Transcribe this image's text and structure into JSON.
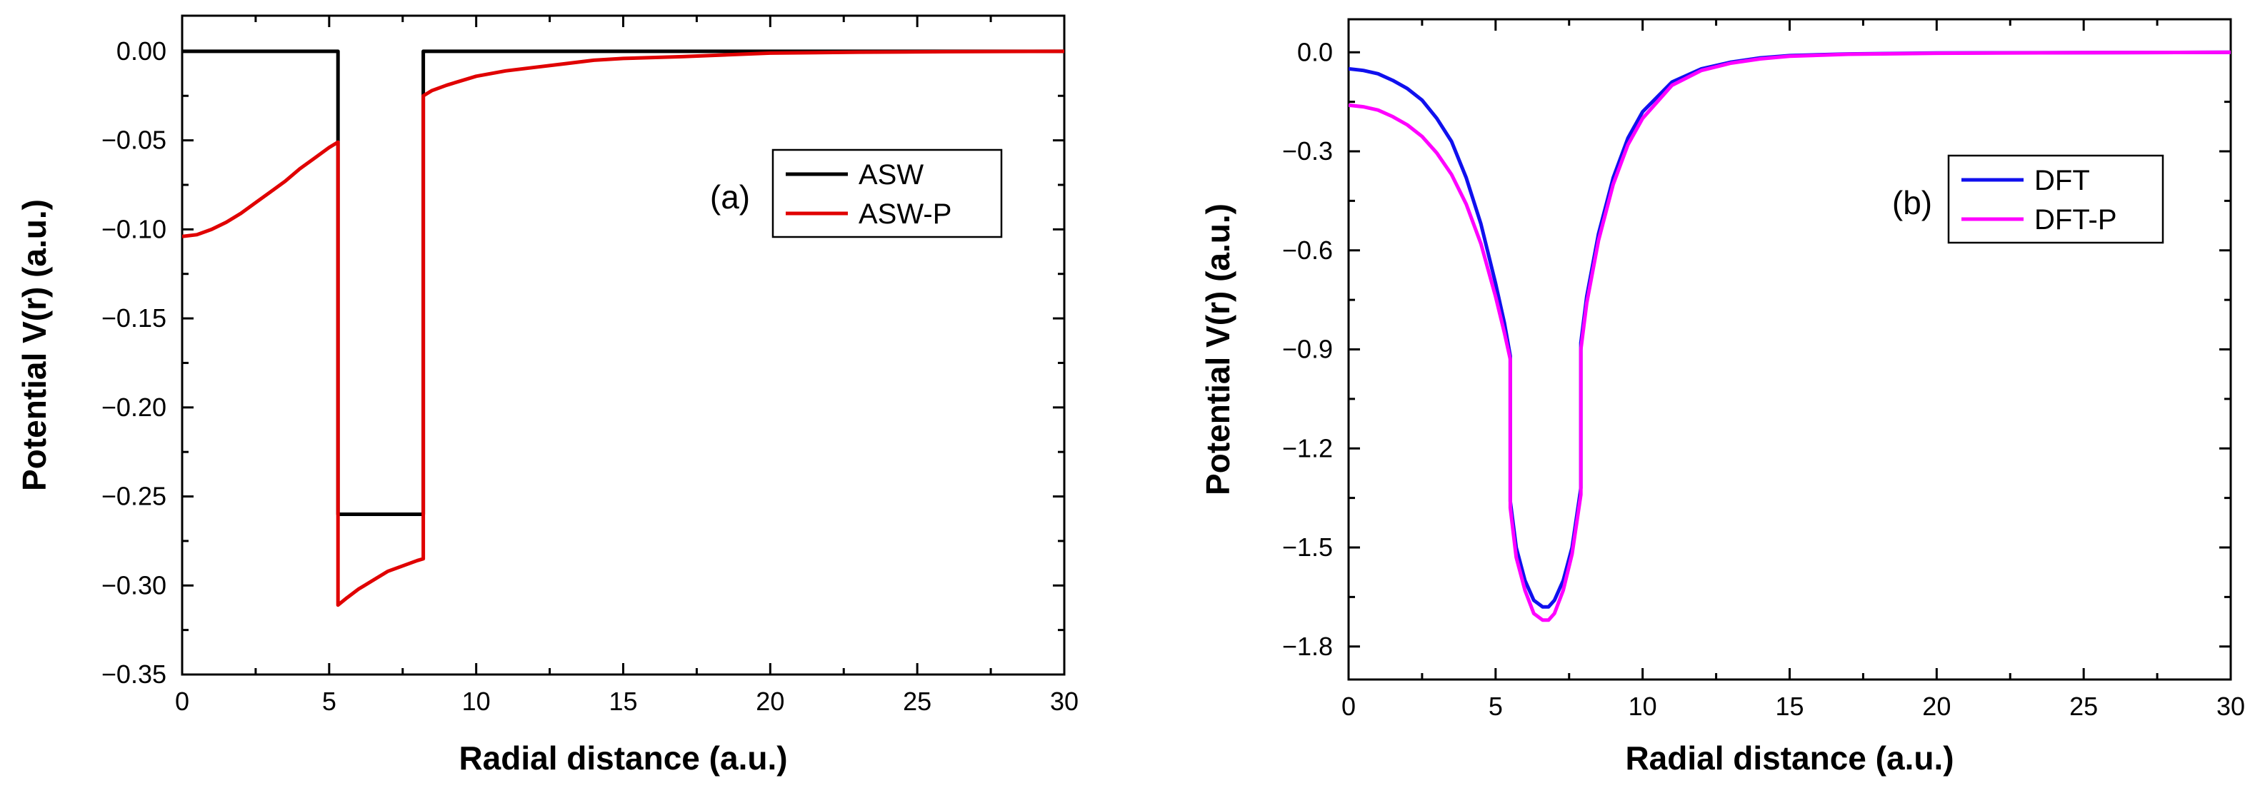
{
  "chart_data": [
    {
      "type": "line",
      "panel_label": "(a)",
      "xlabel": "Radial distance (a.u.)",
      "ylabel": "Potential V(r) (a.u.)",
      "xlim": [
        0,
        30
      ],
      "ylim": [
        -0.35,
        0.02
      ],
      "x_ticks": [
        0,
        5,
        10,
        15,
        20,
        25,
        30
      ],
      "y_ticks": [
        0.0,
        -0.05,
        -0.1,
        -0.15,
        -0.2,
        -0.25,
        -0.3,
        -0.35
      ],
      "x_tick_labels": [
        "0",
        "5",
        "10",
        "15",
        "20",
        "25",
        "30"
      ],
      "y_tick_labels": [
        "0.00",
        "−0.05",
        "−0.10",
        "−0.15",
        "−0.20",
        "−0.25",
        "−0.30",
        "−0.35"
      ],
      "grid": false,
      "legend_position": "top-right",
      "series": [
        {
          "name": "ASW",
          "color": "#000000",
          "x": [
            0,
            5.3,
            5.3,
            8.2,
            8.2,
            30
          ],
          "y": [
            0.0,
            0.0,
            -0.26,
            -0.26,
            0.0,
            0.0
          ]
        },
        {
          "name": "ASW-P",
          "color": "#e00000",
          "x": [
            0,
            0.5,
            1,
            1.5,
            2,
            2.5,
            3,
            3.5,
            4,
            4.5,
            5,
            5.3,
            5.3,
            5.6,
            6,
            6.5,
            7,
            7.5,
            8,
            8.2,
            8.2,
            8.5,
            9,
            10,
            11,
            12,
            13,
            14,
            15,
            17,
            20,
            23,
            26,
            30
          ],
          "y": [
            -0.104,
            -0.103,
            -0.1,
            -0.096,
            -0.091,
            -0.085,
            -0.079,
            -0.073,
            -0.066,
            -0.06,
            -0.054,
            -0.051,
            -0.311,
            -0.307,
            -0.302,
            -0.297,
            -0.292,
            -0.289,
            -0.286,
            -0.285,
            -0.025,
            -0.022,
            -0.019,
            -0.014,
            -0.011,
            -0.009,
            -0.007,
            -0.005,
            -0.004,
            -0.003,
            -0.001,
            -0.0005,
            -0.0002,
            0.0
          ]
        }
      ]
    },
    {
      "type": "line",
      "panel_label": "(b)",
      "xlabel": "Radial distance (a.u.)",
      "ylabel": "Potential V(r) (a.u.)",
      "xlim": [
        0,
        30
      ],
      "ylim": [
        -1.9,
        0.1
      ],
      "x_ticks": [
        0,
        5,
        10,
        15,
        20,
        25,
        30
      ],
      "y_ticks": [
        0.0,
        -0.3,
        -0.6,
        -0.9,
        -1.2,
        -1.5,
        -1.8
      ],
      "x_tick_labels": [
        "0",
        "5",
        "10",
        "15",
        "20",
        "25",
        "30"
      ],
      "y_tick_labels": [
        "0.0",
        "−0.3",
        "−0.6",
        "−0.9",
        "−1.2",
        "−1.5",
        "−1.8"
      ],
      "grid": false,
      "legend_position": "center-right",
      "series": [
        {
          "name": "DFT",
          "color": "#1010ee",
          "x": [
            0,
            0.5,
            1,
            1.5,
            2,
            2.5,
            3,
            3.5,
            4,
            4.5,
            5,
            5.3,
            5.5,
            5.5,
            5.7,
            6,
            6.3,
            6.6,
            6.8,
            7,
            7.3,
            7.6,
            7.9,
            7.9,
            8.1,
            8.5,
            9,
            9.5,
            10,
            11,
            12,
            13,
            14,
            15,
            17,
            20,
            25,
            30
          ],
          "y": [
            -0.05,
            -0.055,
            -0.065,
            -0.085,
            -0.11,
            -0.145,
            -0.2,
            -0.27,
            -0.38,
            -0.52,
            -0.7,
            -0.82,
            -0.92,
            -1.36,
            -1.5,
            -1.6,
            -1.66,
            -1.68,
            -1.68,
            -1.66,
            -1.6,
            -1.5,
            -1.32,
            -0.88,
            -0.74,
            -0.55,
            -0.38,
            -0.26,
            -0.18,
            -0.09,
            -0.05,
            -0.03,
            -0.017,
            -0.01,
            -0.005,
            -0.002,
            -0.001,
            0.0
          ]
        },
        {
          "name": "DFT-P",
          "color": "#ff00ff",
          "x": [
            0,
            0.5,
            1,
            1.5,
            2,
            2.5,
            3,
            3.5,
            4,
            4.5,
            5,
            5.3,
            5.5,
            5.5,
            5.7,
            6,
            6.3,
            6.6,
            6.8,
            7,
            7.3,
            7.6,
            7.9,
            7.9,
            8.1,
            8.5,
            9,
            9.5,
            10,
            11,
            12,
            13,
            14,
            15,
            17,
            20,
            25,
            30
          ],
          "y": [
            -0.16,
            -0.165,
            -0.175,
            -0.195,
            -0.22,
            -0.255,
            -0.305,
            -0.37,
            -0.46,
            -0.58,
            -0.74,
            -0.85,
            -0.93,
            -1.38,
            -1.53,
            -1.63,
            -1.7,
            -1.72,
            -1.72,
            -1.7,
            -1.63,
            -1.52,
            -1.34,
            -0.9,
            -0.76,
            -0.57,
            -0.4,
            -0.28,
            -0.2,
            -0.1,
            -0.055,
            -0.033,
            -0.02,
            -0.012,
            -0.006,
            -0.003,
            -0.001,
            0.0
          ]
        }
      ]
    }
  ]
}
